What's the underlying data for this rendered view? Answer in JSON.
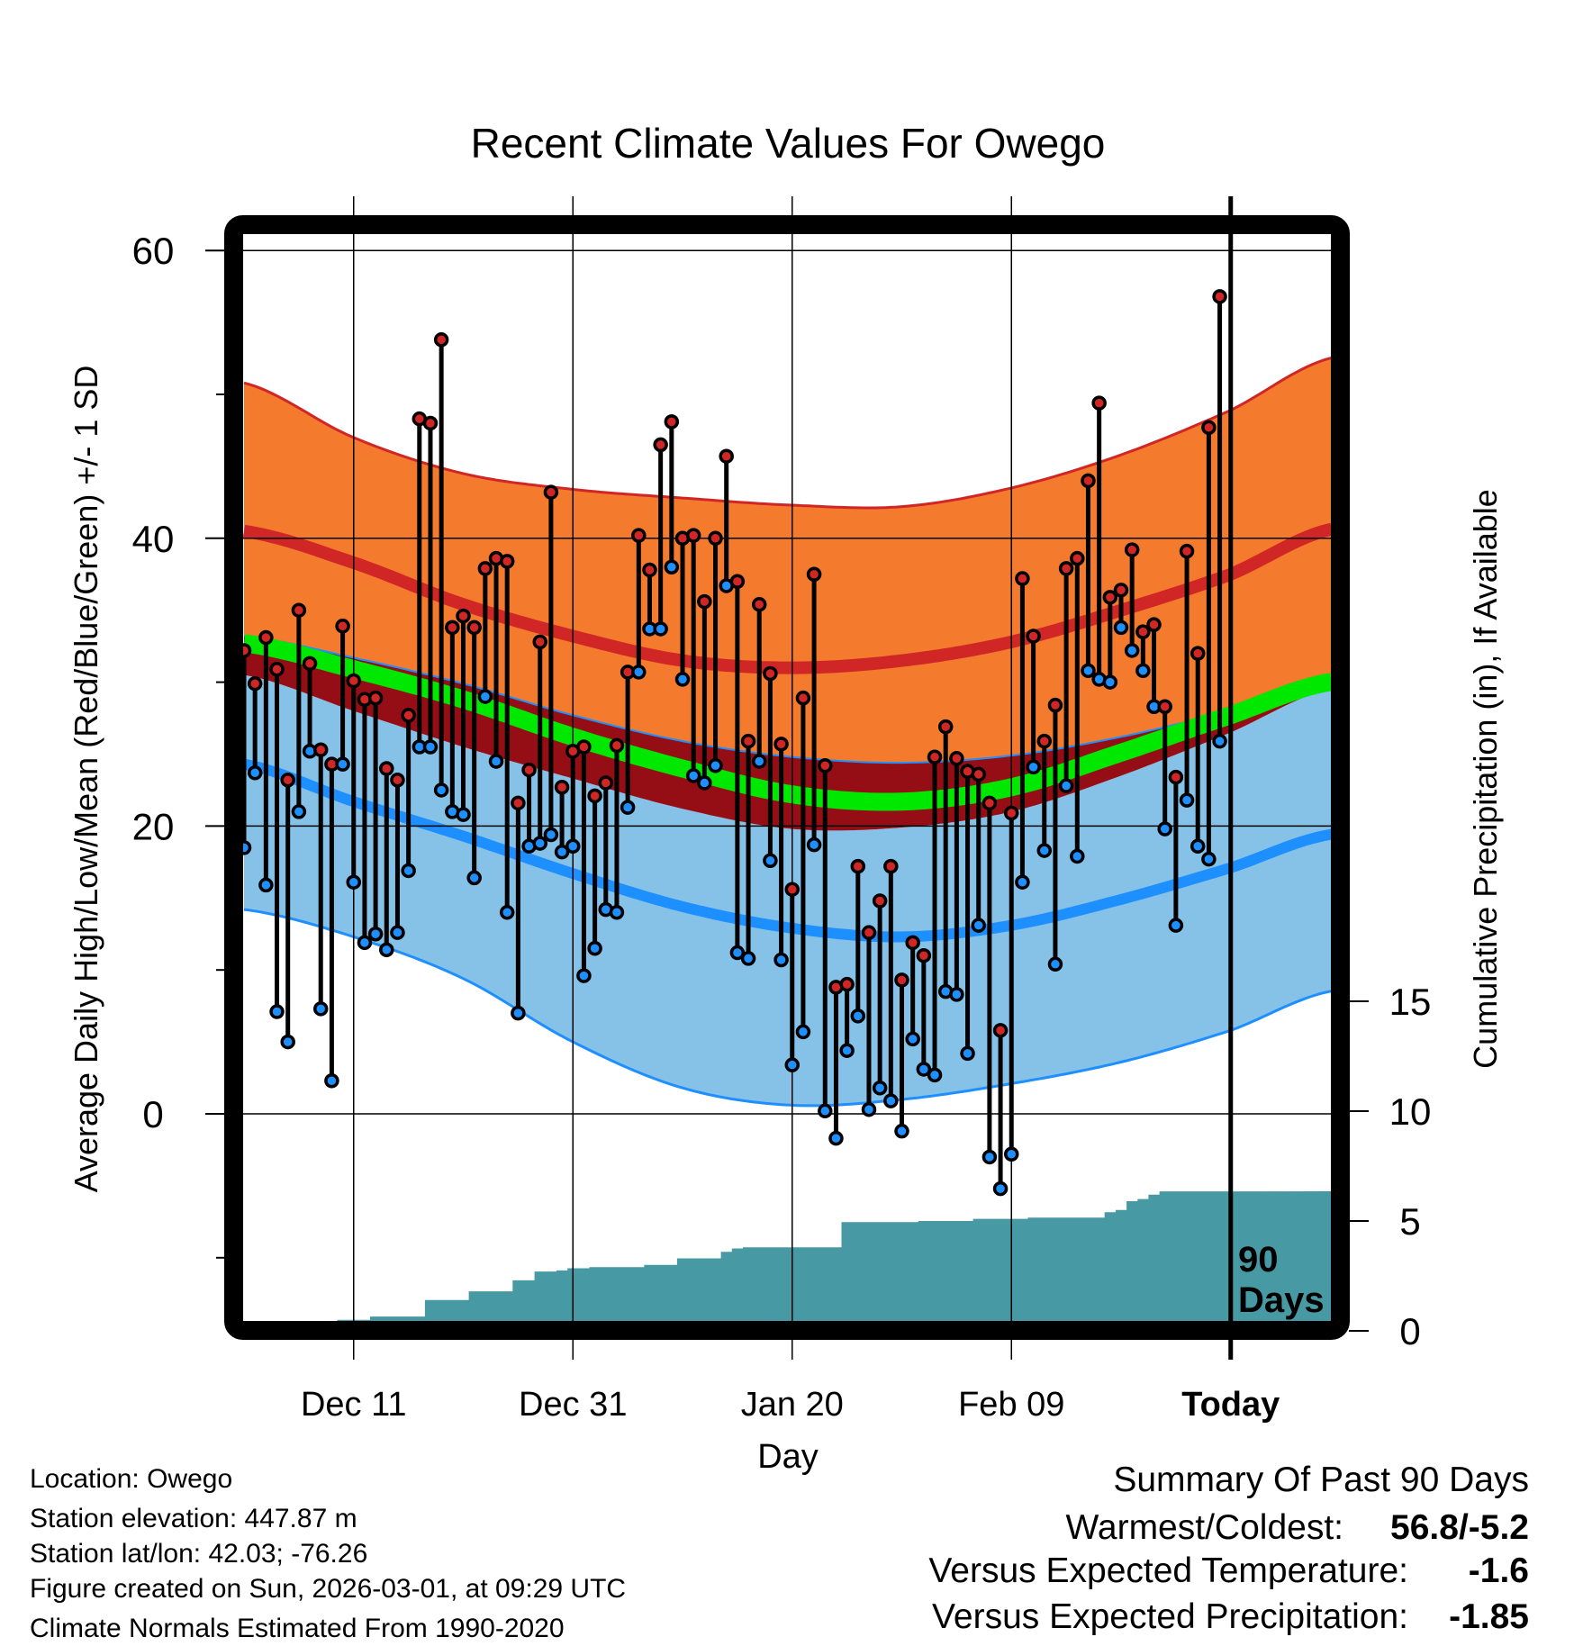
{
  "chart_data": {
    "type": "line",
    "title": "Recent Climate Values For Owego",
    "xlabel": "Day",
    "ylabel": "Average Daily High/Low/Mean (Red/Blue/Green) +/- 1 SD",
    "y2label": "Cumulative Precipitation (in), If Available",
    "xlim": [
      -0.1,
      99.2
    ],
    "ylim": [
      -14.4,
      61.1
    ],
    "y2_range_at_axis": [
      0,
      15
    ],
    "grid": true,
    "yticks": [
      0,
      20,
      40,
      60
    ],
    "yminor": [
      -10,
      10,
      30,
      50
    ],
    "y2ticks": [
      0,
      5,
      10,
      15
    ],
    "xticks": [
      {
        "day": 10,
        "label": "Dec 11"
      },
      {
        "day": 30,
        "label": "Dec 31"
      },
      {
        "day": 50,
        "label": "Jan 20"
      },
      {
        "day": 70,
        "label": "Feb 09"
      },
      {
        "day": 90,
        "label": "Today"
      }
    ],
    "today_day": 90,
    "today_marker_label": [
      "90",
      "Days"
    ],
    "daily_high": [
      32.2,
      29.9,
      33.1,
      30.9,
      23.2,
      35.0,
      31.3,
      25.3,
      24.3,
      33.9,
      30.1,
      28.8,
      28.9,
      24.0,
      23.2,
      27.7,
      48.3,
      48.0,
      53.8,
      33.8,
      34.6,
      33.8,
      37.9,
      38.6,
      38.4,
      21.6,
      23.9,
      32.8,
      43.2,
      22.7,
      25.2,
      25.5,
      22.1,
      23.0,
      25.6,
      30.7,
      40.2,
      37.8,
      46.5,
      48.1,
      40.0,
      40.2,
      35.6,
      40.0,
      45.7,
      37.0,
      25.9,
      35.4,
      30.6,
      25.7,
      15.6,
      28.9,
      37.5,
      24.2,
      8.8,
      9.0,
      17.2,
      12.6,
      14.8,
      17.2,
      9.3,
      11.9,
      11.0,
      24.8,
      26.9,
      24.7,
      23.8,
      23.6,
      21.6,
      5.8,
      20.9,
      37.2,
      33.2,
      25.9,
      28.4,
      37.9,
      38.6,
      44.0,
      49.4,
      35.9,
      36.4,
      39.2,
      33.5,
      34.0,
      28.3,
      23.4,
      39.1,
      32.0,
      47.7,
      56.8
    ],
    "daily_low": [
      18.5,
      23.7,
      15.9,
      7.1,
      5.0,
      21.0,
      25.2,
      7.3,
      2.3,
      24.3,
      16.1,
      11.9,
      12.5,
      11.4,
      12.6,
      16.9,
      25.5,
      25.5,
      22.5,
      21.0,
      20.8,
      16.4,
      29.0,
      24.5,
      14.0,
      7.0,
      18.6,
      18.8,
      19.4,
      18.2,
      18.6,
      9.6,
      11.5,
      14.2,
      14.0,
      21.3,
      30.7,
      33.7,
      33.7,
      38.0,
      30.2,
      23.5,
      23.0,
      24.2,
      36.7,
      11.2,
      10.8,
      24.5,
      17.6,
      10.7,
      3.4,
      5.7,
      18.7,
      0.2,
      -1.7,
      4.4,
      6.8,
      0.3,
      1.8,
      0.9,
      -1.2,
      5.2,
      3.1,
      2.7,
      8.5,
      8.3,
      4.2,
      13.1,
      -3.0,
      -5.2,
      -2.8,
      16.1,
      24.1,
      18.3,
      10.4,
      22.8,
      17.9,
      30.8,
      30.2,
      30.0,
      33.8,
      32.2,
      30.8,
      28.3,
      19.8,
      13.1,
      21.8,
      18.6,
      17.7,
      25.9
    ],
    "normals": {
      "days": [
        0,
        10,
        20,
        30,
        40,
        50,
        60,
        70,
        80,
        90,
        99
      ],
      "high_plus_sd": [
        50.8,
        47.0,
        44.5,
        43.4,
        42.8,
        42.3,
        42.2,
        43.5,
        45.8,
        48.9,
        52.5
      ],
      "high_mean": [
        40.5,
        38.3,
        35.4,
        33.2,
        31.5,
        31.0,
        31.5,
        32.8,
        35.0,
        37.5,
        40.6
      ],
      "high_minus_sd": [
        33.2,
        31.7,
        29.9,
        27.7,
        25.9,
        24.8,
        24.4,
        24.9,
        26.2,
        28.0,
        29.9
      ],
      "mean": [
        32.7,
        30.9,
        28.8,
        26.2,
        24.0,
        22.2,
        21.7,
        22.7,
        25.1,
        27.7,
        30.0
      ],
      "low_plus_sd": [
        30.5,
        28.0,
        25.5,
        23.3,
        21.2,
        19.8,
        19.9,
        21.0,
        23.5,
        26.5,
        29.5
      ],
      "low_mean": [
        24.3,
        21.7,
        19.3,
        16.7,
        14.4,
        12.9,
        12.3,
        13.1,
        14.9,
        17.1,
        19.4
      ],
      "low_minus_sd": [
        14.2,
        12.3,
        9.4,
        5.0,
        1.8,
        0.6,
        1.0,
        2.1,
        3.6,
        5.8,
        8.5
      ]
    },
    "cumulative_precip": [
      0.4,
      0.4,
      0.4,
      0.4,
      0.4,
      0.4,
      0.4,
      0.4,
      0.45,
      0.5,
      0.5,
      0.5,
      0.65,
      0.65,
      0.65,
      0.65,
      0.65,
      1.4,
      1.4,
      1.4,
      1.4,
      1.8,
      1.8,
      1.8,
      1.8,
      2.3,
      2.3,
      2.7,
      2.7,
      2.75,
      2.85,
      2.85,
      2.9,
      2.9,
      2.9,
      2.9,
      2.9,
      3.0,
      3.0,
      3.0,
      3.3,
      3.3,
      3.3,
      3.3,
      3.6,
      3.75,
      3.8,
      3.8,
      3.8,
      3.8,
      3.8,
      3.8,
      3.8,
      3.8,
      3.8,
      4.95,
      4.95,
      4.95,
      4.95,
      4.95,
      4.95,
      4.95,
      5.0,
      5.0,
      5.0,
      5.0,
      5.0,
      5.1,
      5.1,
      5.1,
      5.1,
      5.1,
      5.15,
      5.15,
      5.15,
      5.15,
      5.15,
      5.15,
      5.15,
      5.4,
      5.5,
      5.9,
      6.0,
      6.2,
      6.35,
      6.35,
      6.35,
      6.35,
      6.35,
      6.35
    ],
    "colors": {
      "high_band": "#F47A2E",
      "high_line": "#D12626",
      "overlap_band": "#950E15",
      "mean_line": "#00E800",
      "low_band": "#86C2E8",
      "low_line": "#1E8FFF",
      "precip_fill": "#4799A3",
      "high_dot": "#D12626",
      "low_dot": "#1E8FFF"
    }
  },
  "info": {
    "location": "Location: Owego",
    "elevation": "Station elevation: 447.87 m",
    "latlon": "Station lat/lon: 42.03; -76.26",
    "created": "Figure created on Sun, 2026-03-01, at 09:29 UTC",
    "normals": "Climate Normals Estimated From 1990-2020"
  },
  "summary": {
    "heading": "Summary Of Past 90 Days",
    "warm_cold_label": "Warmest/Coldest:",
    "warm_cold_value": "56.8/-5.2",
    "temp_label": "Versus Expected Temperature:",
    "temp_value": "-1.6",
    "temp_color": "#1E8FFF",
    "precip_label": "Versus Expected Precipitation:",
    "precip_value": "-1.85",
    "precip_color": "#A0522D"
  }
}
